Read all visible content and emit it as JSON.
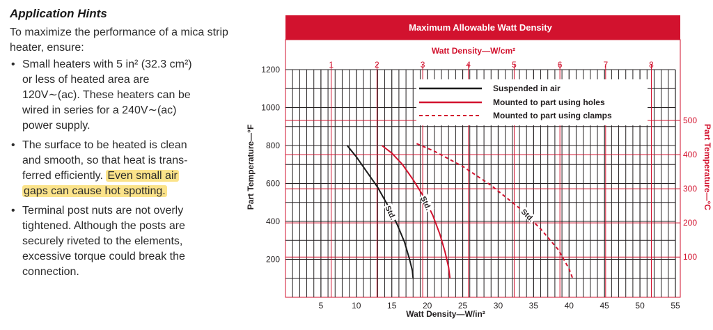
{
  "hints": {
    "title": "Application Hints",
    "intro": "To maximize the performance of a mica strip heater, ensure:",
    "bullets": [
      {
        "lines": [
          "Small heaters with 5 in² (32.3 cm²)",
          "or less of heated area are",
          "120V∼(ac). These heaters can be",
          "wired in series for a 240V∼(ac)",
          "power supply."
        ]
      },
      {
        "lines": [
          "The surface to be heated is clean",
          "and smooth, so that heat is trans-",
          "ferred efficiently."
        ],
        "highlight": [
          "Even small air",
          "gaps can cause hot spotting."
        ]
      },
      {
        "lines": [
          "Terminal post nuts are not overly",
          "tightened. Although the posts are",
          "securely riveted to the elements,",
          "excessive torque could break the",
          "connection."
        ]
      }
    ]
  },
  "colors": {
    "red": "#d2122e",
    "black": "#1a1a1a",
    "highlight": "#fbe38a"
  },
  "chart_data": {
    "type": "line",
    "title": "Maximum Allowable Watt Density",
    "xlabel": "Watt Density—W/in²",
    "x2label": "Watt Density—W/cm²",
    "ylabel": "Part Temperature—°F",
    "y2label": "Part Temperature—°C",
    "xlim": [
      0,
      55
    ],
    "ylim": [
      0,
      1200
    ],
    "x_ticks": [
      5,
      10,
      15,
      20,
      25,
      30,
      35,
      40,
      45,
      50,
      55
    ],
    "y_ticks": [
      200,
      400,
      600,
      800,
      1000,
      1200
    ],
    "x2_ticks": [
      "1",
      "2",
      "3",
      "4",
      "5",
      "6",
      "7",
      "8"
    ],
    "y2_ticks": [
      "100",
      "200",
      "300",
      "400",
      "500"
    ],
    "grid": true,
    "legend_position": "top-right",
    "series": [
      {
        "name": "Suspended in air",
        "color": "#1a1a1a",
        "style": "solid",
        "label": "Std.",
        "x": [
          8.7,
          10,
          11.5,
          13,
          14.5,
          15.8,
          16.8,
          17.5,
          17.9,
          18.0
        ],
        "y": [
          800,
          740,
          660,
          580,
          480,
          380,
          290,
          200,
          140,
          100
        ]
      },
      {
        "name": "Mounted to part using holes",
        "color": "#d2122e",
        "style": "solid",
        "label": "Std.",
        "x": [
          13.6,
          15,
          16.5,
          18,
          19.5,
          20.8,
          21.8,
          22.5,
          23.0,
          23.2
        ],
        "y": [
          800,
          760,
          700,
          620,
          530,
          430,
          330,
          240,
          160,
          100
        ]
      },
      {
        "name": "Mounted to part using clamps",
        "color": "#d2122e",
        "style": "dashed",
        "label": "Std.",
        "x": [
          18.5,
          21,
          25,
          29,
          33,
          36,
          38.5,
          40.0,
          40.5
        ],
        "y": [
          810,
          770,
          690,
          590,
          470,
          360,
          250,
          150,
          100
        ]
      }
    ]
  }
}
